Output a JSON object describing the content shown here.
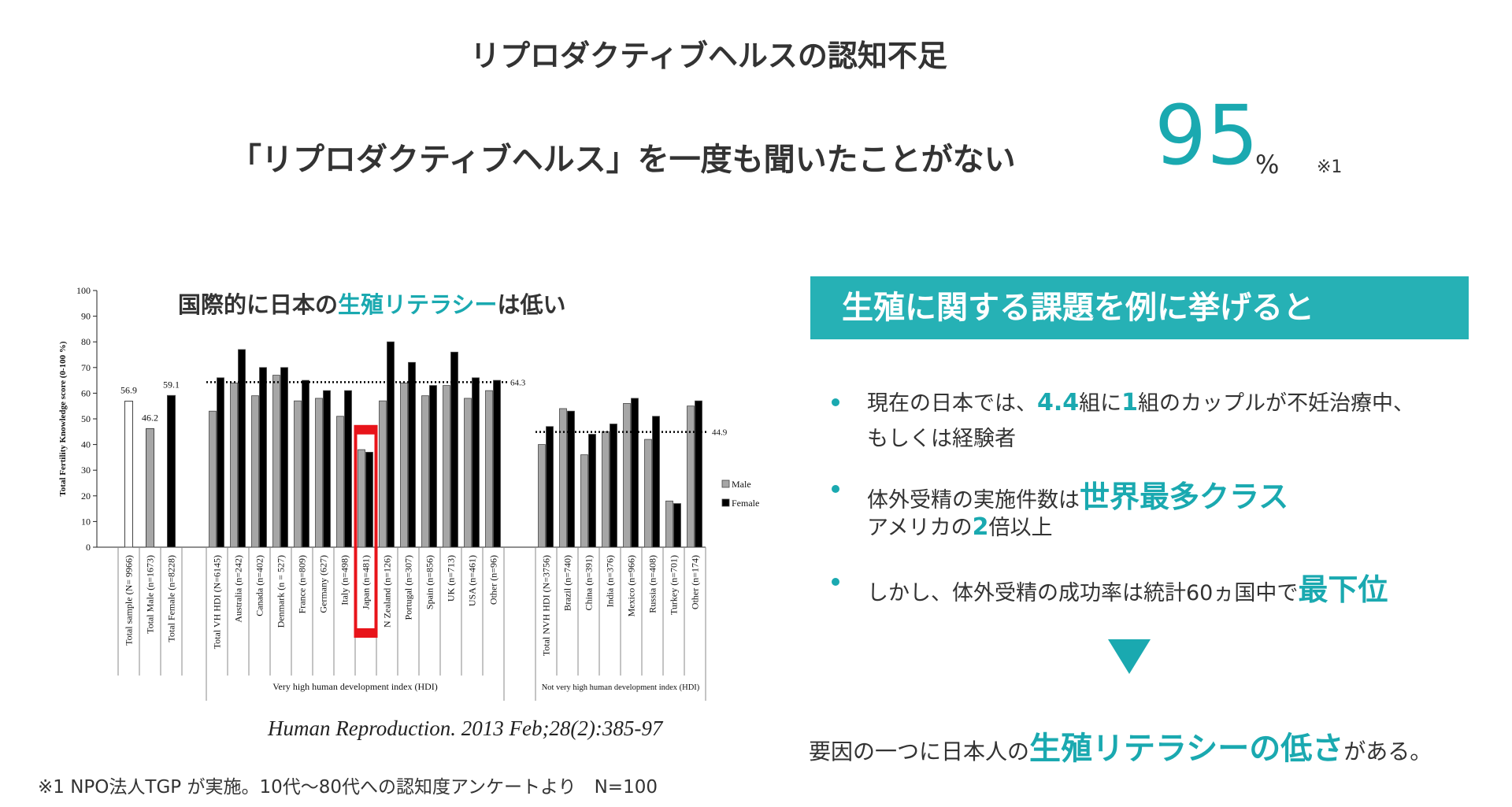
{
  "title": "リプロダクティブヘルスの認知不足",
  "headline": {
    "text": "「リプロダクティブヘルス」を一度も聞いたことがない",
    "stat": 95,
    "unit": "%",
    "note": "※1"
  },
  "chart_data": {
    "type": "grouped-bar",
    "title": [
      {
        "text": "国際的に日本の",
        "style": "plain"
      },
      {
        "text": "生殖リテラシー",
        "style": "teal"
      },
      {
        "text": "は低い",
        "style": "plain"
      }
    ],
    "y_label": "Total Fertility Knowledge score (0-100 %)",
    "ylim": [
      0,
      100
    ],
    "yticks": [
      0,
      10,
      20,
      30,
      40,
      50,
      60,
      70,
      80,
      90,
      100
    ],
    "series": [
      {
        "name": "Male",
        "color": "#a6a6a6"
      },
      {
        "name": "Female",
        "color": "#000000"
      }
    ],
    "highlight_color": "#e8141a",
    "groups": [
      {
        "categories": [
          "Total sample (N= 9966)",
          "Total Male (n=1673)",
          "Total Female (n=8228)"
        ],
        "values": [
          56.9,
          46.2,
          59.1
        ],
        "colors": [
          "#ffffff",
          "#a6a6a6",
          "#000000"
        ]
      },
      {
        "label": "Very high human development index (HDI)",
        "mean": 64.3,
        "highlight": 7,
        "categories": [
          "Total VH HDI (N=6145)",
          "Australia (n=242)",
          "Canada (n=402)",
          "Denmark (n = 527)",
          "France (n=809)",
          "Germany (627)",
          "Italy (n=498)",
          "Japan (n=481)",
          "N Zealand (n=126)",
          "Portugal (n=307)",
          "Spain (n=856)",
          "UK (n=713)",
          "USA (n=461)",
          "Other (n=96)"
        ],
        "male": [
          53,
          64,
          59,
          67,
          57,
          58,
          51,
          38,
          57,
          64,
          59,
          63,
          58,
          61
        ],
        "female": [
          66,
          77,
          70,
          70,
          65,
          61,
          61,
          37,
          80,
          72,
          63,
          76,
          66,
          65
        ]
      },
      {
        "label": "Not very high human development index (HDI)",
        "mean": 44.9,
        "categories": [
          "Total NVH HDI (N=3756)",
          "Brazil (n=740)",
          "China (n=391)",
          "India (n=376)",
          "Mexico (n=966)",
          "Russia (n=408)",
          "Turkey (n=701)",
          "Other (n=174)"
        ],
        "male": [
          40,
          54,
          36,
          45,
          56,
          42,
          18,
          55
        ],
        "female": [
          47,
          53,
          44,
          48,
          58,
          51,
          17,
          57
        ]
      }
    ],
    "source": "Human Reproduction. 2013 Feb;28(2):385-97"
  },
  "panel": {
    "header": "生殖に関する課題を例に挙げると",
    "bullets": [
      [
        [
          {
            "text": "現在の日本では、",
            "style": "plain"
          },
          {
            "text": "4.4",
            "style": "em"
          },
          {
            "text": "組に",
            "style": "plain"
          },
          {
            "text": "1",
            "style": "em"
          },
          {
            "text": "組のカップルが不妊治療中、",
            "style": "plain"
          }
        ],
        [
          {
            "text": "もしくは経験者",
            "style": "plain"
          }
        ]
      ],
      [
        [
          {
            "text": "体外受精の実施件数は",
            "style": "plain"
          },
          {
            "text": "世界最多クラス",
            "style": "big"
          }
        ],
        [
          {
            "text": "アメリカの",
            "style": "plain"
          },
          {
            "text": "2",
            "style": "em"
          },
          {
            "text": "倍以上",
            "style": "plain"
          }
        ]
      ],
      [
        [
          {
            "text": "しかし、体外受精の成功率は統計60ヵ国中で",
            "style": "plain"
          },
          {
            "text": "最下位",
            "style": "big"
          }
        ]
      ]
    ],
    "conclusion": [
      {
        "text": "要因の一つに日本人の",
        "style": "plain"
      },
      {
        "text": "生殖リテラシーの低さ",
        "style": "big"
      },
      {
        "text": "がある。",
        "style": "plain"
      }
    ]
  },
  "footnote": "※1  NPO法人TGP が実施。10代～80代への認知度アンケートより　N=100"
}
